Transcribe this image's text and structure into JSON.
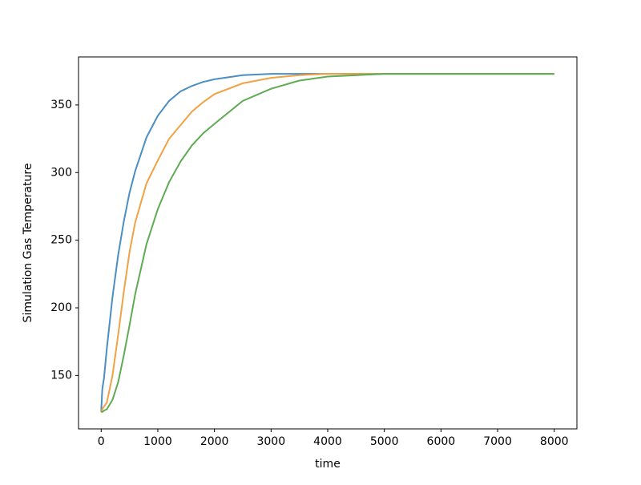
{
  "chart_data": {
    "type": "line",
    "xlabel": "time",
    "ylabel": "Simulation Gas Temperature",
    "x": [
      0,
      20,
      50,
      100,
      200,
      300,
      400,
      500,
      600,
      800,
      1000,
      1200,
      1400,
      1600,
      1800,
      2000,
      2500,
      3000,
      3500,
      4000,
      5000,
      6000,
      7000,
      8000
    ],
    "series": [
      {
        "color": "#4a8ec2",
        "values": [
          123,
          140,
          148,
          170,
          208,
          239,
          264,
          285,
          301,
          326,
          342,
          353,
          360,
          364,
          367,
          369,
          372,
          373,
          373,
          373,
          373,
          373,
          373,
          373
        ]
      },
      {
        "color": "#f0a244",
        "values": [
          123,
          125,
          127,
          130,
          150,
          180,
          212,
          241,
          263,
          292,
          309,
          325,
          335,
          345,
          352,
          358,
          366,
          370,
          372,
          373,
          373,
          373,
          373,
          373
        ]
      },
      {
        "color": "#5eab54",
        "values": [
          123,
          123,
          124,
          125,
          132,
          145,
          165,
          187,
          210,
          247,
          273,
          293,
          308,
          320,
          329,
          336,
          353,
          362,
          368,
          371,
          373,
          373,
          373,
          373
        ]
      }
    ],
    "xlim": [
      -400,
      8400
    ],
    "ylim": [
      110.5,
      385.5
    ],
    "xticks": [
      0,
      1000,
      2000,
      3000,
      4000,
      5000,
      6000,
      7000,
      8000
    ],
    "yticks": [
      150,
      200,
      250,
      300,
      350
    ],
    "grid": false
  }
}
